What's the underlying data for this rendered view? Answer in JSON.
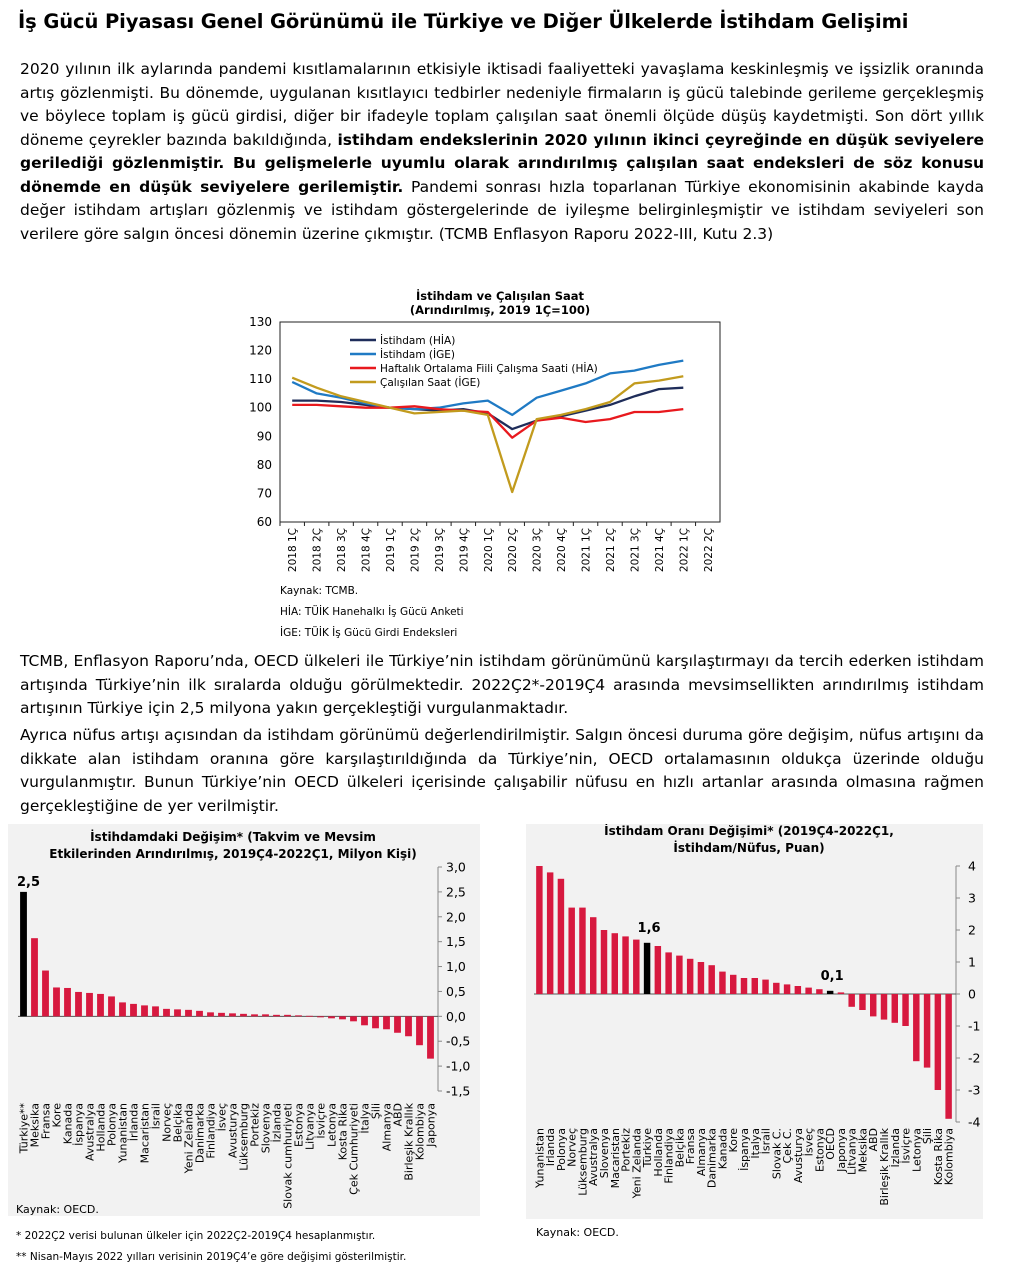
{
  "title": "İş Gücü Piyasası Genel Görünümü ile Türkiye ve Diğer Ülkelerde İstihdam Gelişimi",
  "para1": {
    "text1": "2020 yılının ilk aylarında pandemi kısıtlamalarının etkisiyle iktisadi faaliyetteki yavaşlama keskinleşmiş ve işsizlik oranında artış gözlenmişti. Bu dönemde, uygulanan kısıtlayıcı tedbirler nedeniyle firmaların iş gücü talebinde gerileme gerçekleşmiş ve böylece toplam iş gücü girdisi, diğer bir ifadeyle toplam çalışılan saat önemli ölçüde düşüş kaydetmişti. Son dört yıllık döneme çeyrekler bazında bakıldığında, ",
    "bold": "istihdam endekslerinin 2020 yılının ikinci çeyreğinde en düşük seviyelere gerilediği gözlenmiştir. Bu gelişmelerle uyumlu olarak arındırılmış çalışılan saat endeksleri de söz konusu dönemde en düşük seviyelere gerilemiştir.",
    "text2": " Pandemi sonrası hızla toparlanan Türkiye ekonomisinin akabinde kayda değer istihdam artışları gözlenmiş ve istihdam göstergelerinde de iyileşme belirginleşmiştir ve istihdam seviyeleri son verilere göre salgın öncesi dönemin üzerine çıkmıştır. (TCMB Enflasyon Raporu 2022-III, Kutu 2.3)"
  },
  "para2": "TCMB, Enflasyon Raporu’nda, OECD ülkeleri ile Türkiye’nin istihdam görünümünü karşılaştırmayı da tercih ederken istihdam artışında Türkiye’nin ilk sıralarda olduğu görülmektedir. 2022Ç2*-2019Ç4 arasında mevsimsellikten arındırılmış istihdam artışının Türkiye için 2,5 milyona yakın gerçekleştiği vurgulanmaktadır.",
  "para3": "Ayrıca nüfus artışı açısından da istihdam görünümü değerlendirilmiştir. Salgın öncesi duruma göre değişim, nüfus artışını da dikkate alan istihdam oranına göre karşılaştırıldığında da Türkiye’nin, OECD ortalamasının oldukça üzerinde olduğu vurgulanmıştır. Bunun Türkiye’nin OECD ülkeleri içerisinde çalışabilir nüfusu en hızlı artanlar arasında olmasına rağmen gerçekleştiğine de yer verilmiştir.",
  "chart_data": [
    {
      "type": "line",
      "title": "İstihdam ve Çalışılan Saat",
      "subtitle": "(Arındırılmış, 2019 1Ç=100)",
      "x": [
        "2018 1Ç",
        "2018 2Ç",
        "2018 3Ç",
        "2018 4Ç",
        "2019 1Ç",
        "2019 2Ç",
        "2019 3Ç",
        "2019 4Ç",
        "2020 1Ç",
        "2020 2Ç",
        "2020 3Ç",
        "2020 4Ç",
        "2021 1Ç",
        "2021 2Ç",
        "2021 3Ç",
        "2021 4Ç",
        "2022 1Ç",
        "2022 2Ç"
      ],
      "ylim": [
        60,
        130
      ],
      "yticks": [
        60,
        70,
        80,
        90,
        100,
        110,
        120,
        130
      ],
      "legend_position": "top-left",
      "series": [
        {
          "name": "İstihdam (HİA)",
          "color": "#1f2d5a",
          "values": [
            102.5,
            102.5,
            102.0,
            101.0,
            100.0,
            99.5,
            99.0,
            99.5,
            98.0,
            92.5,
            95.5,
            97.0,
            99.0,
            101.0,
            104.0,
            106.5,
            107.0,
            null
          ]
        },
        {
          "name": "İstihdam (İGE)",
          "color": "#1f7ac4",
          "values": [
            109.0,
            105.0,
            103.5,
            101.5,
            100.0,
            99.5,
            100.0,
            101.5,
            102.5,
            97.5,
            103.5,
            106.0,
            108.5,
            112.0,
            113.0,
            115.0,
            116.5,
            null
          ]
        },
        {
          "name": "Haftalık Ortalama Fiili Çalışma Saati (HİA)",
          "color": "#e8191e",
          "values": [
            101.0,
            101.0,
            100.5,
            100.0,
            100.0,
            100.5,
            99.5,
            99.0,
            98.5,
            89.5,
            95.5,
            96.5,
            95.0,
            96.0,
            98.5,
            98.5,
            99.5,
            null
          ]
        },
        {
          "name": "Çalışılan Saat (İGE)",
          "color": "#c29b1e",
          "values": [
            110.5,
            107.0,
            104.0,
            102.0,
            100.0,
            98.0,
            98.5,
            99.0,
            97.5,
            70.5,
            96.0,
            97.5,
            99.5,
            102.0,
            108.5,
            109.5,
            111.0,
            null
          ]
        }
      ],
      "notes": [
        "Kaynak: TCMB.",
        "HİA: TÜİK Hanehalkı İş Gücü Anketi",
        "İGE: TÜİK İş Gücü Girdi Endeksleri"
      ]
    },
    {
      "type": "bar",
      "title_line1": "İstihdamdaki Değişim* (Takvim ve Mevsim",
      "title_line2": "Etkilerinden Arındırılmış, 2019Ç4-2022Ç1, Milyon Kişi)",
      "categories": [
        "Türkiye**",
        "Meksika",
        "Fransa",
        "Kore",
        "Kanada",
        "İspanya",
        "Avustralya",
        "Hollanda",
        "Polonya",
        "Yunanistan",
        "İrlanda",
        "Macaristan",
        "İsrail",
        "Norveç",
        "Belçika",
        "Yeni Zelanda",
        "Danimarka",
        "Finlandiya",
        "İsveç",
        "Avusturya",
        "Lüksemburg",
        "Portekiz",
        "Slovenya",
        "İzlanda",
        "Slovak cumhuriyeti",
        "Estonya",
        "Litvanya",
        "İsviçre",
        "Letonya",
        "Kosta Rika",
        "Çek Cumhuriyeti",
        "İtalya",
        "Şili",
        "Almanya",
        "ABD",
        "Birleşik Krallık",
        "Kolombiya",
        "Japonya"
      ],
      "values": [
        2.5,
        1.57,
        0.92,
        0.58,
        0.57,
        0.49,
        0.47,
        0.45,
        0.4,
        0.28,
        0.25,
        0.22,
        0.2,
        0.15,
        0.14,
        0.13,
        0.11,
        0.08,
        0.07,
        0.06,
        0.05,
        0.04,
        0.04,
        0.03,
        0.03,
        0.02,
        0.01,
        -0.02,
        -0.04,
        -0.06,
        -0.1,
        -0.18,
        -0.24,
        -0.26,
        -0.33,
        -0.4,
        -0.58,
        -0.85
      ],
      "ylim": [
        -1.5,
        3.0
      ],
      "yticks": [
        "3,0",
        "2,5",
        "2,0",
        "1,5",
        "1,0",
        "0,5",
        "0,0",
        "-0,5",
        "-1,0",
        "-1,5"
      ],
      "highlight": "Türkiye**",
      "highlight_label": "2,5",
      "notes": [
        "Kaynak: OECD.",
        "* 2022Ç2 verisi bulunan ülkeler için 2022Ç2-2019Ç4 hesaplanmıştır.",
        "** Nisan-Mayıs 2022 yılları verisinin 2019Ç4’e göre değişimi gösterilmiştir."
      ]
    },
    {
      "type": "bar",
      "title_line1": "İstihdam Oranı Değişimi* (2019Ç4-2022Ç1,",
      "title_line2": "İstihdam/Nüfus, Puan)",
      "categories": [
        "Yunanistan",
        "İrlanda",
        "Polonya",
        "Norveç",
        "Lüksemburg",
        "Avustralya",
        "Slovenya",
        "Macaristan",
        "Portekiz",
        "Yeni Zelanda",
        "Türkiye",
        "Hollanda",
        "Finlandiya",
        "Belçika",
        "Fransa",
        "Almanya",
        "Danimarka",
        "Kanada",
        "Kore",
        "İspanya",
        "İtalya",
        "İsrail",
        "Slovak C.",
        "Çek C.",
        "Avusturya",
        "İsveç",
        "Estonya",
        "OECD",
        "Japonya",
        "Litvanya",
        "Meksika",
        "ABD",
        "Birleşik Krallık",
        "İzlanda",
        "İsviçre",
        "Letonya",
        "Şili",
        "Kosta Rika",
        "Kolombiya"
      ],
      "values": [
        4.0,
        3.8,
        3.6,
        2.7,
        2.7,
        2.4,
        2.0,
        1.9,
        1.8,
        1.7,
        1.6,
        1.5,
        1.3,
        1.2,
        1.1,
        1.0,
        0.9,
        0.7,
        0.6,
        0.5,
        0.5,
        0.45,
        0.35,
        0.3,
        0.25,
        0.2,
        0.15,
        0.1,
        0.05,
        -0.4,
        -0.5,
        -0.7,
        -0.8,
        -0.9,
        -1.0,
        -2.1,
        -2.3,
        -3.0,
        -3.9
      ],
      "ylim": [
        -4,
        4
      ],
      "yticks": [
        "4",
        "3",
        "2",
        "1",
        "0",
        "-1",
        "-2",
        "-3",
        "-4"
      ],
      "highlight": [
        "Türkiye",
        "OECD"
      ],
      "labels": {
        "Türkiye": "1,6",
        "OECD": "0,1"
      },
      "notes": [
        "Kaynak: OECD."
      ]
    }
  ]
}
